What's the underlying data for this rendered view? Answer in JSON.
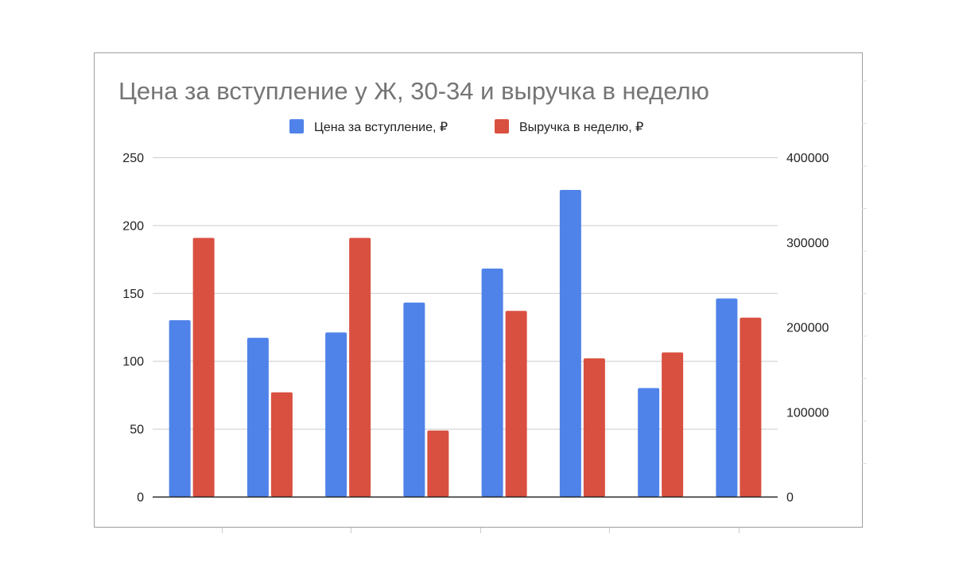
{
  "chart_data": {
    "type": "bar",
    "title": "Цена за вступление у Ж, 30-34 и выручка в неделю",
    "xlabel": "",
    "ylabel": "",
    "categories": [
      "",
      "",
      "",
      "",
      "",
      "",
      "",
      ""
    ],
    "series": [
      {
        "name": "Цена за вступление, ₽",
        "axis": "left",
        "color": "#4f83e9",
        "values": [
          130,
          117,
          121,
          143,
          168,
          226,
          80,
          146
        ]
      },
      {
        "name": "Выручка в неделю, ₽",
        "axis": "right",
        "color": "#d95040",
        "values": [
          305000,
          123000,
          305000,
          78000,
          219000,
          163000,
          170000,
          211000
        ]
      }
    ],
    "ylim_left": [
      0,
      250
    ],
    "ylim_right": [
      0,
      400000
    ],
    "left_ticks": [
      "0",
      "50",
      "100",
      "150",
      "200",
      "250"
    ],
    "right_ticks": [
      "0",
      "100000",
      "200000",
      "300000",
      "400000"
    ],
    "legend_position": "top",
    "grid": true
  }
}
